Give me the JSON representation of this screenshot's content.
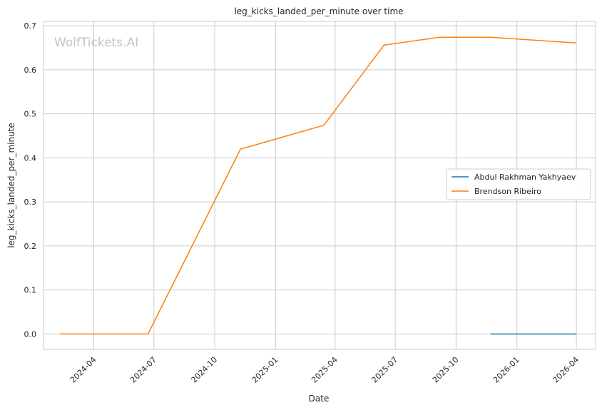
{
  "chart_data": {
    "type": "line",
    "title": "leg_kicks_landed_per_minute over time",
    "xlabel": "Date",
    "ylabel": "leg_kicks_landed_per_minute",
    "watermark": "WolfTickets.AI",
    "ylim": [
      -0.035,
      0.71
    ],
    "xlim": [
      "2024-01-16",
      "2026-04-30"
    ],
    "y_ticks": [
      0.0,
      0.1,
      0.2,
      0.3,
      0.4,
      0.5,
      0.6,
      0.7
    ],
    "y_tick_labels": [
      "0.0",
      "0.1",
      "0.2",
      "0.3",
      "0.4",
      "0.5",
      "0.6",
      "0.7"
    ],
    "x_ticks": [
      "2024-04-01",
      "2024-07-01",
      "2024-10-01",
      "2025-01-01",
      "2025-04-01",
      "2025-07-01",
      "2025-10-01",
      "2026-01-01",
      "2026-04-01"
    ],
    "x_tick_labels": [
      "2024-04",
      "2024-07",
      "2024-10",
      "2025-01",
      "2025-04",
      "2025-07",
      "2025-10",
      "2026-01",
      "2026-04"
    ],
    "grid": true,
    "legend_position": "center-right",
    "series": [
      {
        "name": "Abdul Rakhman Yakhyaev",
        "color": "#1f77b4",
        "points": [
          {
            "x": "2025-11-22",
            "y": 0.0
          },
          {
            "x": "2026-04-01",
            "y": 0.0
          }
        ]
      },
      {
        "name": "Brendson Ribeiro",
        "color": "#ff7f0e",
        "points": [
          {
            "x": "2024-02-10",
            "y": 0.0
          },
          {
            "x": "2024-06-22",
            "y": 0.0
          },
          {
            "x": "2024-11-09",
            "y": 0.42
          },
          {
            "x": "2025-03-15",
            "y": 0.474
          },
          {
            "x": "2025-06-14",
            "y": 0.656
          },
          {
            "x": "2025-09-06",
            "y": 0.674
          },
          {
            "x": "2025-11-22",
            "y": 0.674
          },
          {
            "x": "2026-04-01",
            "y": 0.661
          }
        ]
      }
    ]
  }
}
